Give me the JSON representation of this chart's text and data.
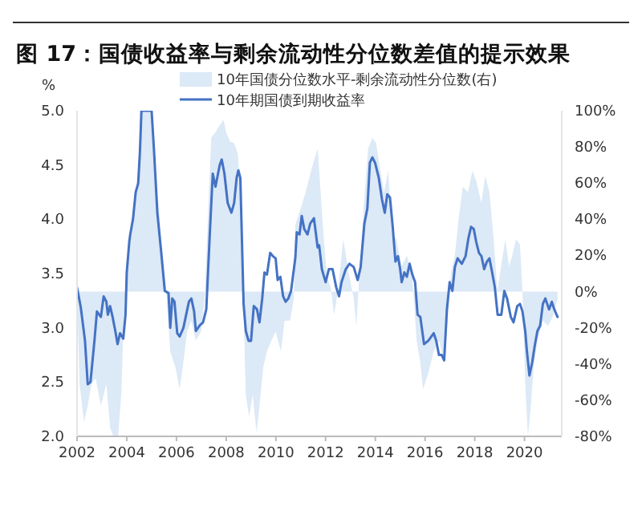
{
  "chart_data": {
    "type": "line",
    "title": "图 17：国债收益率与剩余流动性分位数差值的提示效果",
    "ylabel": "%",
    "legend": "top",
    "xlim": [
      2002,
      2021.5
    ],
    "xticks": [
      2002,
      2004,
      2006,
      2008,
      2010,
      2012,
      2014,
      2016,
      2018,
      2020
    ],
    "ylim": [
      2.0,
      5.0
    ],
    "yticks": [
      {
        "value": 2,
        "label": "2.0"
      },
      {
        "value": 2.5,
        "label": "2.5"
      },
      {
        "value": 3,
        "label": "3.0"
      },
      {
        "value": 3.5,
        "label": "3.5"
      },
      {
        "value": 4,
        "label": "4.0"
      },
      {
        "value": 4.5,
        "label": "4.5"
      },
      {
        "value": 5,
        "label": "5.0"
      }
    ],
    "y2lim": [
      -80,
      100
    ],
    "y2ticks": [
      {
        "value": -80,
        "label": "-80%"
      },
      {
        "value": -60,
        "label": "-60%"
      },
      {
        "value": -40,
        "label": "-40%"
      },
      {
        "value": -20,
        "label": "-20%"
      },
      {
        "value": 0,
        "label": "0%"
      },
      {
        "value": 20,
        "label": "20%"
      },
      {
        "value": 40,
        "label": "40%"
      },
      {
        "value": 60,
        "label": "60%"
      },
      {
        "value": 80,
        "label": "80%"
      },
      {
        "value": 100,
        "label": "100%"
      }
    ],
    "series": [
      {
        "name": "10年国债分位数水平-剩余流动性分位数(右)",
        "type": "area",
        "axis": "y2",
        "color": "#dce9f6",
        "x": [
          2002.0,
          2002.1,
          2002.28,
          2002.43,
          2002.58,
          2002.75,
          2002.96,
          2003.18,
          2003.33,
          2003.46,
          2003.65,
          2003.78,
          2003.86,
          2003.95,
          2004.14,
          2004.36,
          2004.5,
          2004.59,
          2005.0,
          2005.21,
          2005.38,
          2005.58,
          2005.75,
          2005.96,
          2006.13,
          2006.28,
          2006.43,
          2006.6,
          2006.78,
          2006.99,
          2007.14,
          2007.25,
          2007.4,
          2007.57,
          2007.74,
          2007.89,
          2008.0,
          2008.15,
          2008.32,
          2008.47,
          2008.57,
          2008.68,
          2008.79,
          2008.92,
          2009.07,
          2009.22,
          2009.34,
          2009.49,
          2009.64,
          2009.82,
          2009.99,
          2010.2,
          2010.35,
          2010.57,
          2010.72,
          2010.78,
          2011.0,
          2011.2,
          2011.42,
          2011.68,
          2011.74,
          2011.91,
          2012.06,
          2012.21,
          2012.34,
          2012.49,
          2012.71,
          2012.92,
          2013.13,
          2013.24,
          2013.35,
          2013.56,
          2013.71,
          2013.88,
          2014.03,
          2014.2,
          2014.35,
          2014.52,
          2014.67,
          2014.84,
          2015.06,
          2015.27,
          2015.49,
          2015.66,
          2015.81,
          2015.92,
          2016.13,
          2016.35,
          2016.56,
          2016.77,
          2016.92,
          2017.05,
          2017.2,
          2017.35,
          2017.52,
          2017.73,
          2017.91,
          2018.06,
          2018.27,
          2018.42,
          2018.59,
          2018.76,
          2018.91,
          2019.06,
          2019.23,
          2019.38,
          2019.51,
          2019.66,
          2019.82,
          2019.92,
          2020.03,
          2020.14,
          2020.24,
          2020.37,
          2020.52,
          2020.74,
          2020.95,
          2021.16,
          2021.33
        ],
        "values": [
          0,
          -51,
          -72,
          -63,
          -51,
          -48,
          -63,
          -51,
          -75,
          -80,
          -80,
          -57,
          -22,
          0,
          29,
          52,
          76,
          100,
          100,
          61,
          29,
          2,
          -33,
          -42,
          -54,
          -39,
          -22,
          -16,
          -27,
          -22,
          -4,
          37,
          85,
          88,
          92,
          95,
          88,
          83,
          82,
          76,
          52,
          0,
          -57,
          -69,
          -57,
          -78,
          -63,
          -42,
          -33,
          -27,
          -22,
          -33,
          -16,
          -16,
          -4,
          37,
          46,
          55,
          67,
          79,
          67,
          32,
          8,
          2,
          -13,
          0,
          29,
          11,
          -4,
          -19,
          8,
          52,
          79,
          85,
          82,
          67,
          55,
          67,
          32,
          29,
          14,
          20,
          8,
          -27,
          -39,
          -54,
          -45,
          -33,
          -27,
          -39,
          -13,
          11,
          20,
          40,
          58,
          55,
          67,
          61,
          49,
          64,
          55,
          29,
          0,
          14,
          29,
          14,
          20,
          29,
          26,
          0,
          -51,
          -80,
          -66,
          -42,
          -27,
          -16,
          -19,
          -13,
          -4
        ]
      },
      {
        "name": "10年期国债到期收益率",
        "color": "#4472c4",
        "x": [
          2002.0,
          2002.15,
          2002.32,
          2002.43,
          2002.54,
          2002.7,
          2002.8,
          2002.96,
          2003.07,
          2003.18,
          2003.24,
          2003.33,
          2003.43,
          2003.54,
          2003.63,
          2003.73,
          2003.86,
          2003.95,
          2004.0,
          2004.1,
          2004.14,
          2004.25,
          2004.36,
          2004.46,
          2004.53,
          2004.59,
          2005.0,
          2005.1,
          2005.23,
          2005.38,
          2005.53,
          2005.68,
          2005.75,
          2005.83,
          2005.92,
          2006.03,
          2006.13,
          2006.28,
          2006.39,
          2006.5,
          2006.6,
          2006.71,
          2006.78,
          2006.93,
          2007.07,
          2007.2,
          2007.35,
          2007.46,
          2007.57,
          2007.74,
          2007.82,
          2007.93,
          2008.06,
          2008.21,
          2008.32,
          2008.42,
          2008.49,
          2008.57,
          2008.7,
          2008.79,
          2008.9,
          2009.0,
          2009.11,
          2009.24,
          2009.34,
          2009.45,
          2009.54,
          2009.64,
          2009.77,
          2009.88,
          2009.99,
          2010.07,
          2010.18,
          2010.29,
          2010.39,
          2010.5,
          2010.61,
          2010.78,
          2010.84,
          2010.95,
          2011.04,
          2011.14,
          2011.27,
          2011.38,
          2011.53,
          2011.68,
          2011.74,
          2011.85,
          2012.0,
          2012.13,
          2012.28,
          2012.43,
          2012.54,
          2012.64,
          2012.81,
          2012.96,
          2013.13,
          2013.29,
          2013.41,
          2013.56,
          2013.68,
          2013.78,
          2013.88,
          2013.99,
          2014.14,
          2014.27,
          2014.38,
          2014.48,
          2014.59,
          2014.7,
          2014.81,
          2014.91,
          2015.0,
          2015.06,
          2015.17,
          2015.27,
          2015.38,
          2015.49,
          2015.6,
          2015.7,
          2015.81,
          2015.96,
          2016.13,
          2016.35,
          2016.45,
          2016.56,
          2016.67,
          2016.77,
          2016.88,
          2016.99,
          2017.1,
          2017.2,
          2017.31,
          2017.48,
          2017.63,
          2017.75,
          2017.85,
          2017.96,
          2018.06,
          2018.17,
          2018.27,
          2018.38,
          2018.49,
          2018.59,
          2018.7,
          2018.81,
          2018.92,
          2019.07,
          2019.19,
          2019.3,
          2019.45,
          2019.56,
          2019.71,
          2019.82,
          2019.92,
          2020.03,
          2020.1,
          2020.2,
          2020.31,
          2020.41,
          2020.52,
          2020.63,
          2020.74,
          2020.84,
          2020.99,
          2021.1,
          2021.2,
          2021.33
        ],
        "values": [
          3.37,
          3.19,
          2.88,
          2.48,
          2.5,
          2.88,
          3.15,
          3.1,
          3.29,
          3.24,
          3.12,
          3.2,
          3.1,
          2.97,
          2.85,
          2.95,
          2.9,
          3.12,
          3.51,
          3.79,
          3.86,
          4.0,
          4.25,
          4.33,
          4.62,
          5.0,
          5.0,
          4.62,
          4.06,
          3.71,
          3.34,
          3.32,
          3.0,
          3.27,
          3.24,
          2.95,
          2.92,
          3.0,
          3.12,
          3.24,
          3.27,
          3.15,
          2.97,
          3.02,
          3.05,
          3.17,
          3.91,
          4.42,
          4.3,
          4.5,
          4.55,
          4.42,
          4.15,
          4.06,
          4.15,
          4.38,
          4.45,
          4.38,
          3.22,
          2.97,
          2.88,
          2.88,
          3.2,
          3.17,
          3.05,
          3.27,
          3.51,
          3.49,
          3.69,
          3.66,
          3.64,
          3.44,
          3.47,
          3.29,
          3.24,
          3.27,
          3.34,
          3.64,
          3.88,
          3.86,
          4.03,
          3.91,
          3.86,
          3.96,
          4.01,
          3.74,
          3.76,
          3.54,
          3.42,
          3.54,
          3.54,
          3.37,
          3.29,
          3.42,
          3.54,
          3.59,
          3.56,
          3.44,
          3.56,
          3.96,
          4.1,
          4.52,
          4.57,
          4.52,
          4.38,
          4.18,
          4.06,
          4.23,
          4.2,
          3.93,
          3.61,
          3.66,
          3.54,
          3.42,
          3.51,
          3.47,
          3.59,
          3.49,
          3.42,
          3.12,
          3.1,
          2.85,
          2.88,
          2.95,
          2.88,
          2.75,
          2.75,
          2.7,
          3.17,
          3.42,
          3.34,
          3.56,
          3.64,
          3.59,
          3.66,
          3.83,
          3.93,
          3.91,
          3.79,
          3.69,
          3.66,
          3.54,
          3.61,
          3.64,
          3.51,
          3.37,
          3.12,
          3.12,
          3.34,
          3.27,
          3.1,
          3.05,
          3.2,
          3.22,
          3.15,
          2.97,
          2.78,
          2.56,
          2.68,
          2.83,
          2.97,
          3.02,
          3.22,
          3.27,
          3.17,
          3.24,
          3.17,
          3.1
        ]
      }
    ]
  }
}
